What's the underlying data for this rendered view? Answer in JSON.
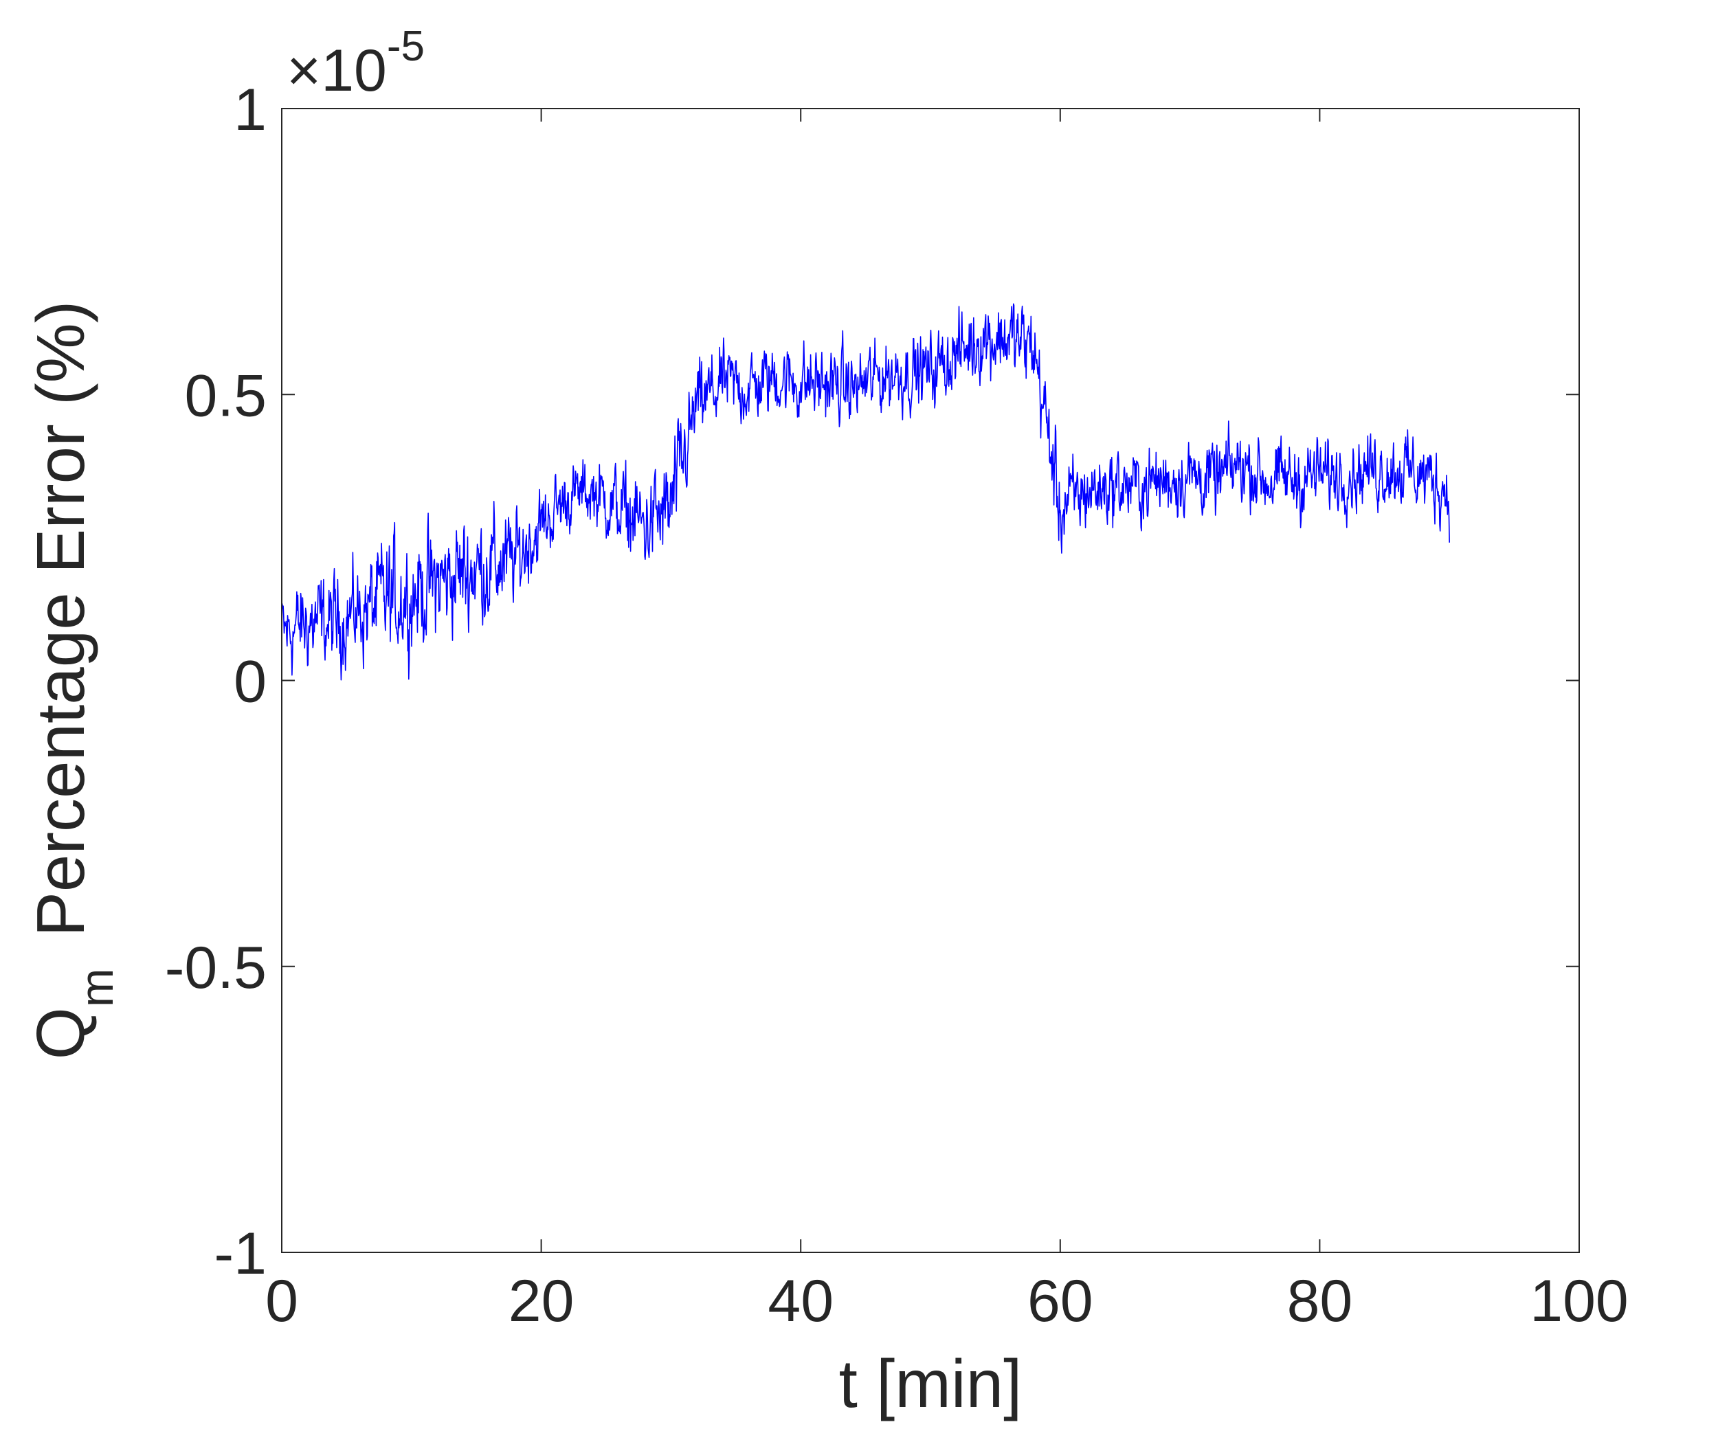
{
  "chart_data": {
    "type": "line",
    "xlabel": "t  [min]",
    "ylabel_main": "Q",
    "ylabel_sub": "m",
    "ylabel_rest": "Percentage Error (%)",
    "exponent_label": {
      "times": "×10",
      "power": "-5"
    },
    "xlim": [
      0,
      100
    ],
    "ylim": [
      -1,
      1
    ],
    "xticks": [
      "0",
      "20",
      "40",
      "60",
      "80",
      "100"
    ],
    "yticks": [
      "-1",
      "-0.5",
      "0",
      "0.5",
      "1"
    ],
    "xtick_values": [
      0,
      20,
      40,
      60,
      80,
      100
    ],
    "ytick_values": [
      -1,
      -0.5,
      0,
      0.5,
      1
    ],
    "grid": false,
    "line_color": "#0000ff",
    "axis_color": "#262626",
    "series": [
      {
        "x": [
          0,
          2,
          4,
          6,
          8,
          10,
          12,
          14,
          16,
          18,
          20,
          22,
          24,
          26,
          28,
          30,
          32,
          34,
          36,
          38,
          40,
          42,
          44,
          46,
          48,
          50,
          52,
          54,
          56,
          58,
          60,
          62,
          64,
          66,
          68,
          70,
          72,
          74,
          76,
          78,
          80,
          82,
          84,
          86,
          88,
          90
        ],
        "y": [
          0.08,
          0.1,
          0.1,
          0.12,
          0.14,
          0.15,
          0.17,
          0.19,
          0.2,
          0.21,
          0.27,
          0.32,
          0.33,
          0.3,
          0.27,
          0.3,
          0.48,
          0.52,
          0.51,
          0.53,
          0.52,
          0.52,
          0.51,
          0.53,
          0.54,
          0.54,
          0.57,
          0.6,
          0.6,
          0.58,
          0.3,
          0.33,
          0.34,
          0.34,
          0.35,
          0.36,
          0.35,
          0.38,
          0.35,
          0.35,
          0.36,
          0.36,
          0.37,
          0.37,
          0.36,
          0.33
        ],
        "amp": [
          0.09,
          0.1,
          0.1,
          0.1,
          0.13,
          0.12,
          0.12,
          0.12,
          0.12,
          0.1,
          0.08,
          0.07,
          0.07,
          0.09,
          0.1,
          0.12,
          0.09,
          0.08,
          0.08,
          0.08,
          0.08,
          0.08,
          0.08,
          0.08,
          0.08,
          0.08,
          0.08,
          0.09,
          0.09,
          0.09,
          0.1,
          0.08,
          0.08,
          0.08,
          0.08,
          0.08,
          0.08,
          0.08,
          0.08,
          0.08,
          0.08,
          0.07,
          0.08,
          0.08,
          0.08,
          0.08
        ]
      }
    ]
  }
}
